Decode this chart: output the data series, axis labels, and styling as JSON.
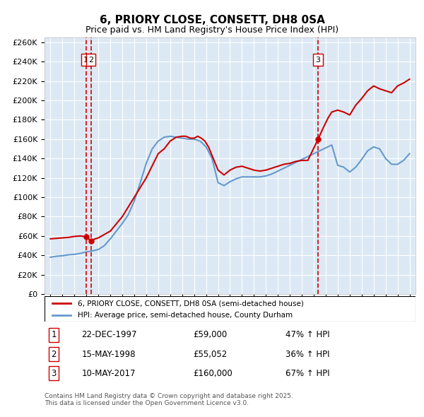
{
  "title": "6, PRIORY CLOSE, CONSETT, DH8 0SA",
  "subtitle": "Price paid vs. HM Land Registry's House Price Index (HPI)",
  "ylabel_ticks": [
    "£0",
    "£20K",
    "£40K",
    "£60K",
    "£80K",
    "£100K",
    "£120K",
    "£140K",
    "£160K",
    "£180K",
    "£200K",
    "£220K",
    "£240K",
    "£260K"
  ],
  "ylim": [
    0,
    265000
  ],
  "xlim": [
    1994.5,
    2025.5
  ],
  "bg_color": "#dce9f5",
  "grid_color": "#ffffff",
  "transactions": [
    {
      "date_num": 1997.97,
      "price": 59000,
      "label": "1",
      "date_str": "22-DEC-1997",
      "price_str": "£59,000",
      "hpi_str": "47% ↑ HPI"
    },
    {
      "date_num": 1998.37,
      "price": 55052,
      "label": "2",
      "date_str": "15-MAY-1998",
      "price_str": "£55,052",
      "hpi_str": "36% ↑ HPI"
    },
    {
      "date_num": 2017.36,
      "price": 160000,
      "label": "3",
      "date_str": "10-MAY-2017",
      "price_str": "£160,000",
      "hpi_str": "67% ↑ HPI"
    }
  ],
  "hpi_line_color": "#6699cc",
  "property_line_color": "#cc0000",
  "vline_color": "#cc0000",
  "legend_label_property": "6, PRIORY CLOSE, CONSETT, DH8 0SA (semi-detached house)",
  "legend_label_hpi": "HPI: Average price, semi-detached house, County Durham",
  "footnote": "Contains HM Land Registry data © Crown copyright and database right 2025.\nThis data is licensed under the Open Government Licence v3.0.",
  "hpi_years": [
    1995.0,
    1995.5,
    1996.0,
    1996.5,
    1997.0,
    1997.5,
    1998.0,
    1998.5,
    1999.0,
    1999.5,
    2000.0,
    2000.5,
    2001.0,
    2001.5,
    2002.0,
    2002.5,
    2003.0,
    2003.5,
    2004.0,
    2004.5,
    2005.0,
    2005.5,
    2006.0,
    2006.5,
    2007.0,
    2007.5,
    2008.0,
    2008.5,
    2009.0,
    2009.5,
    2010.0,
    2010.5,
    2011.0,
    2011.5,
    2012.0,
    2012.5,
    2013.0,
    2013.5,
    2014.0,
    2014.5,
    2015.0,
    2015.5,
    2016.0,
    2016.5,
    2017.0,
    2017.5,
    2018.0,
    2018.5,
    2019.0,
    2019.5,
    2020.0,
    2020.5,
    2021.0,
    2021.5,
    2022.0,
    2022.5,
    2023.0,
    2023.5,
    2024.0,
    2024.5,
    2025.0
  ],
  "hpi_values": [
    38000,
    39000,
    39500,
    40500,
    41000,
    42000,
    43500,
    44500,
    46000,
    50000,
    57000,
    65000,
    73000,
    82000,
    96000,
    115000,
    135000,
    150000,
    158000,
    162000,
    163000,
    162000,
    161000,
    160000,
    160000,
    158000,
    152000,
    140000,
    115000,
    112000,
    116000,
    119000,
    121000,
    121000,
    121000,
    121000,
    122000,
    124000,
    127000,
    130000,
    133000,
    136000,
    139000,
    142000,
    145000,
    148000,
    151000,
    154000,
    133000,
    131000,
    126000,
    131000,
    139000,
    148000,
    152000,
    150000,
    140000,
    134000,
    134000,
    138000,
    145000
  ],
  "prop_years": [
    1995.0,
    1995.5,
    1996.0,
    1996.5,
    1997.0,
    1997.5,
    1997.97,
    1998.37,
    1998.5,
    1999.0,
    2000.0,
    2001.0,
    2002.0,
    2003.0,
    2004.0,
    2004.5,
    2005.0,
    2005.5,
    2006.0,
    2006.3,
    2006.7,
    2007.0,
    2007.3,
    2007.6,
    2007.9,
    2008.2,
    2008.5,
    2009.0,
    2009.5,
    2010.0,
    2010.5,
    2011.0,
    2011.5,
    2012.0,
    2012.5,
    2013.0,
    2013.5,
    2014.0,
    2014.5,
    2015.0,
    2015.5,
    2016.0,
    2016.5,
    2017.36,
    2017.8,
    2018.2,
    2018.5,
    2019.0,
    2019.5,
    2020.0,
    2020.5,
    2021.0,
    2021.5,
    2022.0,
    2022.5,
    2023.0,
    2023.5,
    2024.0,
    2024.5,
    2025.0
  ],
  "prop_values": [
    57000,
    57500,
    58000,
    58500,
    59500,
    60000,
    59000,
    55052,
    56000,
    58000,
    65000,
    80000,
    100000,
    120000,
    145000,
    150000,
    158000,
    162000,
    163000,
    163000,
    161000,
    161000,
    163000,
    161000,
    158000,
    152000,
    143000,
    128000,
    123000,
    128000,
    131000,
    132000,
    130000,
    128000,
    127000,
    128000,
    130000,
    132000,
    134000,
    135000,
    137000,
    138000,
    138000,
    160000,
    172000,
    182000,
    188000,
    190000,
    188000,
    185000,
    195000,
    202000,
    210000,
    215000,
    212000,
    210000,
    208000,
    215000,
    218000,
    222000
  ]
}
